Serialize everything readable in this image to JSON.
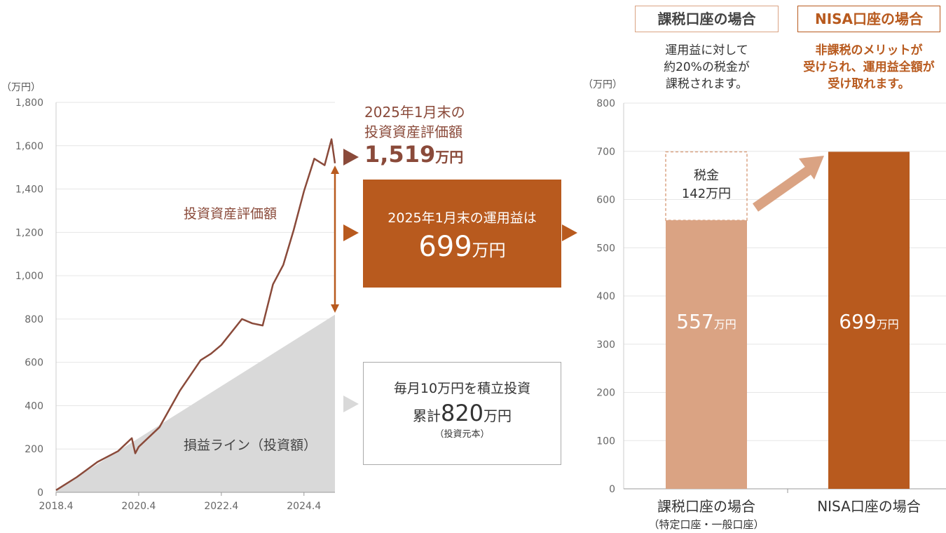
{
  "left_chart": {
    "unit_label": "（万円）",
    "y_ticks": [
      "0",
      "200",
      "400",
      "600",
      "800",
      "1,000",
      "1,200",
      "1,400",
      "1,600",
      "1,800"
    ],
    "x_ticks": [
      "2018.4",
      "2020.4",
      "2022.4",
      "2024.4"
    ],
    "series_label": "投資資産評価額",
    "line_label": "損益ライン（投資額）",
    "colors": {
      "line": "#8a4a3a",
      "area": "#d9d9d9",
      "accent": "#b85a1e"
    }
  },
  "eval_annotation": {
    "line1": "2025年1月末の",
    "line2": "投資資産評価額",
    "value": "1,519",
    "unit": "万円"
  },
  "profit_box": {
    "line1": "2025年1月末の運用益は",
    "value": "699",
    "unit": "万円"
  },
  "principal_box": {
    "line1": "毎月10万円を積立投資",
    "prefix": "累計",
    "value": "820",
    "unit": "万円",
    "note": "（投資元本）"
  },
  "right_panel": {
    "taxable_header": "課税口座の場合",
    "nisa_header": "NISA口座の場合",
    "taxable_desc": [
      "運用益に対して",
      "約20%の税金が",
      "課税されます。"
    ],
    "nisa_desc": [
      "非課税のメリットが",
      "受けられ、運用益全額が",
      "受け取れます。"
    ],
    "unit_label": "（万円）",
    "y_ticks": [
      "0",
      "100",
      "200",
      "300",
      "400",
      "500",
      "600",
      "700",
      "800"
    ],
    "x_label_taxable": "課税口座の場合",
    "x_label_taxable_sub": "（特定口座・一般口座）",
    "x_label_nisa": "NISA口座の場合",
    "tax_label": "税金",
    "tax_value": "142万円",
    "bar1_value": "557",
    "bar1_unit": "万円",
    "bar2_value": "699",
    "bar2_unit": "万円",
    "colors": {
      "light": "#daa383",
      "dark": "#b85a1e"
    }
  },
  "chart_data": [
    {
      "type": "line",
      "title": "",
      "xlabel": "",
      "ylabel": "（万円）",
      "ylim": [
        0,
        1800
      ],
      "x": [
        "2018.4",
        "2018.10",
        "2019.4",
        "2019.10",
        "2020.2",
        "2020.3",
        "2020.4",
        "2020.10",
        "2021.4",
        "2021.10",
        "2022.1",
        "2022.4",
        "2022.10",
        "2023.1",
        "2023.4",
        "2023.7",
        "2023.10",
        "2024.1",
        "2024.4",
        "2024.7",
        "2024.10",
        "2024.12",
        "2025.1"
      ],
      "series": [
        {
          "name": "投資資産評価額",
          "values": [
            10,
            70,
            140,
            190,
            250,
            180,
            210,
            300,
            470,
            610,
            640,
            680,
            800,
            780,
            770,
            960,
            1050,
            1210,
            1390,
            1540,
            1510,
            1630,
            1519
          ]
        },
        {
          "name": "損益ライン（投資額）",
          "values": [
            10,
            70,
            130,
            190,
            230,
            240,
            250,
            310,
            370,
            430,
            460,
            490,
            550,
            580,
            610,
            640,
            670,
            700,
            730,
            760,
            790,
            810,
            820
          ]
        }
      ]
    },
    {
      "type": "bar",
      "title": "",
      "ylabel": "（万円）",
      "ylim": [
        0,
        800
      ],
      "categories": [
        "課税口座の場合",
        "NISA口座の場合"
      ],
      "series": [
        {
          "name": "運用益",
          "values": [
            557,
            699
          ]
        },
        {
          "name": "税金",
          "values": [
            142,
            0
          ]
        }
      ]
    }
  ]
}
